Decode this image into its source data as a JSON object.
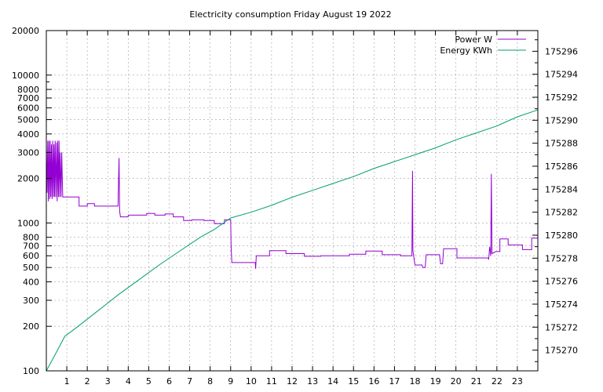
{
  "chart_data": {
    "type": "line",
    "title": "Electricity consumption Friday August 19 2022",
    "grid": true,
    "legend_position": "top-right",
    "x": {
      "ticks": [
        1,
        2,
        3,
        4,
        5,
        6,
        7,
        8,
        9,
        10,
        11,
        12,
        13,
        14,
        15,
        16,
        17,
        18,
        19,
        20,
        21,
        22,
        23
      ],
      "range": [
        0,
        24
      ]
    },
    "y_left": {
      "scale": "log",
      "range": [
        100,
        20000
      ],
      "ticks": [
        100,
        200,
        300,
        400,
        500,
        600,
        700,
        800,
        1000,
        2000,
        3000,
        4000,
        5000,
        6000,
        7000,
        8000,
        10000,
        20000
      ],
      "tick_labels": [
        "100",
        "200",
        "300",
        "400",
        "500",
        "600",
        "700",
        "800",
        "1000",
        "2000",
        "3000",
        "4000",
        "5000",
        "6000",
        "7000",
        "8000",
        "10000",
        "20000"
      ]
    },
    "y_right": {
      "scale": "linear",
      "range": [
        175268.2,
        175297.8
      ],
      "ticks": [
        175270,
        175272,
        175274,
        175276,
        175278,
        175280,
        175282,
        175284,
        175286,
        175288,
        175290,
        175292,
        175294,
        175296
      ]
    },
    "series": [
      {
        "name": "Power W",
        "axis": "left",
        "color": "#9400d3",
        "points": [
          [
            0.0,
            3400
          ],
          [
            0.04,
            1600
          ],
          [
            0.07,
            3600
          ],
          [
            0.1,
            1400
          ],
          [
            0.13,
            3600
          ],
          [
            0.16,
            1450
          ],
          [
            0.19,
            3600
          ],
          [
            0.22,
            1500
          ],
          [
            0.25,
            3400
          ],
          [
            0.28,
            1450
          ],
          [
            0.31,
            3600
          ],
          [
            0.34,
            1500
          ],
          [
            0.37,
            3400
          ],
          [
            0.4,
            1500
          ],
          [
            0.43,
            3600
          ],
          [
            0.46,
            1500
          ],
          [
            0.5,
            3500
          ],
          [
            0.53,
            1400
          ],
          [
            0.56,
            3600
          ],
          [
            0.59,
            1500
          ],
          [
            0.62,
            3600
          ],
          [
            0.65,
            1500
          ],
          [
            0.68,
            3000
          ],
          [
            0.72,
            1500
          ],
          [
            0.75,
            3000
          ],
          [
            0.8,
            1500
          ],
          [
            1.6,
            1500
          ],
          [
            1.6,
            1300
          ],
          [
            2.0,
            1300
          ],
          [
            2.0,
            1350
          ],
          [
            2.35,
            1350
          ],
          [
            2.35,
            1300
          ],
          [
            3.5,
            1300
          ],
          [
            3.55,
            2750
          ],
          [
            3.58,
            1200
          ],
          [
            3.62,
            1100
          ],
          [
            4.0,
            1100
          ],
          [
            4.0,
            1130
          ],
          [
            4.9,
            1130
          ],
          [
            4.9,
            1160
          ],
          [
            5.3,
            1160
          ],
          [
            5.3,
            1130
          ],
          [
            5.8,
            1130
          ],
          [
            5.8,
            1150
          ],
          [
            6.2,
            1150
          ],
          [
            6.2,
            1100
          ],
          [
            6.7,
            1100
          ],
          [
            6.7,
            1040
          ],
          [
            7.1,
            1040
          ],
          [
            7.1,
            1050
          ],
          [
            7.7,
            1050
          ],
          [
            7.7,
            1040
          ],
          [
            8.2,
            1040
          ],
          [
            8.2,
            990
          ],
          [
            8.7,
            990
          ],
          [
            8.7,
            1050
          ],
          [
            9.0,
            1050
          ],
          [
            9.02,
            700
          ],
          [
            9.06,
            540
          ],
          [
            10.2,
            540
          ],
          [
            10.22,
            490
          ],
          [
            10.25,
            600
          ],
          [
            10.9,
            600
          ],
          [
            10.9,
            650
          ],
          [
            11.7,
            650
          ],
          [
            11.7,
            620
          ],
          [
            12.6,
            620
          ],
          [
            12.6,
            595
          ],
          [
            13.4,
            595
          ],
          [
            13.4,
            600
          ],
          [
            14.8,
            600
          ],
          [
            14.8,
            615
          ],
          [
            15.6,
            615
          ],
          [
            15.6,
            645
          ],
          [
            16.4,
            645
          ],
          [
            16.4,
            610
          ],
          [
            17.3,
            610
          ],
          [
            17.3,
            600
          ],
          [
            17.85,
            600
          ],
          [
            17.88,
            2250
          ],
          [
            17.9,
            650
          ],
          [
            18.0,
            520
          ],
          [
            18.35,
            520
          ],
          [
            18.38,
            500
          ],
          [
            18.5,
            500
          ],
          [
            18.55,
            610
          ],
          [
            19.2,
            610
          ],
          [
            19.25,
            530
          ],
          [
            19.35,
            530
          ],
          [
            19.4,
            670
          ],
          [
            20.05,
            670
          ],
          [
            20.05,
            580
          ],
          [
            21.55,
            580
          ],
          [
            21.6,
            570
          ],
          [
            21.65,
            690
          ],
          [
            21.7,
            600
          ],
          [
            21.73,
            2150
          ],
          [
            21.76,
            620
          ],
          [
            21.95,
            640
          ],
          [
            22.15,
            640
          ],
          [
            22.15,
            780
          ],
          [
            22.55,
            780
          ],
          [
            22.55,
            710
          ],
          [
            23.25,
            710
          ],
          [
            23.25,
            660
          ],
          [
            23.7,
            660
          ],
          [
            23.7,
            790
          ],
          [
            24.0,
            790
          ]
        ]
      },
      {
        "name": "Energy KWh",
        "axis": "right",
        "color": "#009e73",
        "points": [
          [
            0.0,
            175268.2
          ],
          [
            0.4,
            175269.5
          ],
          [
            0.9,
            175271.2
          ],
          [
            1.5,
            175272.0
          ],
          [
            2.5,
            175273.4
          ],
          [
            3.5,
            175274.8
          ],
          [
            4.5,
            175276.1
          ],
          [
            5.5,
            175277.4
          ],
          [
            6.5,
            175278.6
          ],
          [
            7.5,
            175279.8
          ],
          [
            8.2,
            175280.5
          ],
          [
            9.0,
            175281.5
          ],
          [
            10.0,
            175282.0
          ],
          [
            11.0,
            175282.6
          ],
          [
            12.0,
            175283.3
          ],
          [
            13.0,
            175283.9
          ],
          [
            14.0,
            175284.5
          ],
          [
            15.0,
            175285.1
          ],
          [
            16.0,
            175285.8
          ],
          [
            17.0,
            175286.4
          ],
          [
            18.0,
            175287.0
          ],
          [
            19.0,
            175287.6
          ],
          [
            20.0,
            175288.3
          ],
          [
            21.0,
            175288.9
          ],
          [
            22.0,
            175289.5
          ],
          [
            23.0,
            175290.3
          ],
          [
            24.0,
            175290.9
          ]
        ]
      }
    ]
  }
}
